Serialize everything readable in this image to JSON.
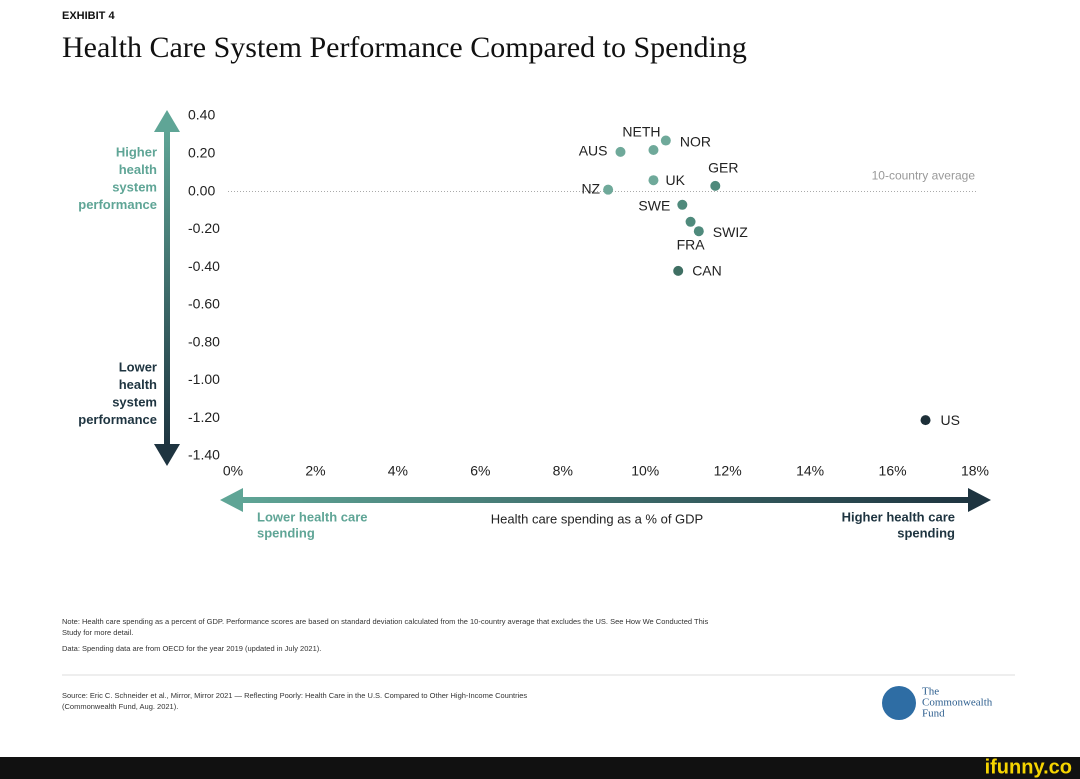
{
  "exhibit": "EXHIBIT 4",
  "chart_data": {
    "type": "scatter",
    "title": "Health Care System Performance Compared to Spending",
    "x_label": "Health care spending as a % of GDP",
    "y_high_label": [
      "Higher",
      "health",
      "system",
      "performance"
    ],
    "y_low_label": [
      "Lower",
      "health",
      "system",
      "performance"
    ],
    "x_low_label": [
      "Lower health care",
      "spending"
    ],
    "x_high_label": [
      "Higher health care",
      "spending"
    ],
    "point_labels": [
      "AUS",
      "NETH",
      "NOR",
      "UK",
      "GER",
      "NZ",
      "SWE",
      "FRA",
      "SWIZ",
      "CAN",
      "US"
    ],
    "x": [
      9.4,
      10.2,
      10.5,
      10.2,
      11.7,
      9.1,
      10.9,
      11.1,
      11.3,
      10.8,
      16.8
    ],
    "values": [
      0.21,
      0.22,
      0.27,
      0.06,
      0.03,
      0.01,
      -0.07,
      -0.16,
      -0.21,
      -0.42,
      -1.21
    ],
    "point_colors": [
      "#6fa99a",
      "#6fa99a",
      "#6fa99a",
      "#6fa99a",
      "#4f8a7c",
      "#6fa99a",
      "#4f8a7c",
      "#4f8a7c",
      "#4f8a7c",
      "#3f6f63",
      "#1d2f38"
    ],
    "reference_line": {
      "value": 0,
      "label": "10-country average"
    },
    "xlim": [
      0,
      18
    ],
    "ylim": [
      -1.4,
      0.4
    ],
    "xticks": [
      {
        "value": 0,
        "label": "0%"
      },
      {
        "value": 2,
        "label": "2%"
      },
      {
        "value": 4,
        "label": "4%"
      },
      {
        "value": 6,
        "label": "6%"
      },
      {
        "value": 8,
        "label": "8%"
      },
      {
        "value": 10,
        "label": "10%"
      },
      {
        "value": 12,
        "label": "12%"
      },
      {
        "value": 14,
        "label": "14%"
      },
      {
        "value": 16,
        "label": "16%"
      },
      {
        "value": 18,
        "label": "18%"
      }
    ],
    "yticks": [
      {
        "value": 0.4,
        "label": "0.40"
      },
      {
        "value": 0.2,
        "label": "0.20"
      },
      {
        "value": 0,
        "label": "0.00"
      },
      {
        "value": -0.2,
        "label": "-0.20"
      },
      {
        "value": -0.4,
        "label": "-0.40"
      },
      {
        "value": -0.6,
        "label": "-0.60"
      },
      {
        "value": -0.8,
        "label": "-0.80"
      },
      {
        "value": -1.0,
        "label": "-1.00"
      },
      {
        "value": -1.2,
        "label": "-1.20"
      },
      {
        "value": -1.4,
        "label": "-1.40"
      }
    ]
  },
  "footer": {
    "note": [
      "Note: Health care spending as a percent of GDP. Performance scores are based on standard deviation calculated from the 10-country average that excludes the US. See How We Conducted This",
      "Study for more detail."
    ],
    "data": "Data: Spending data are from OECD for the year 2019 (updated in July 2021).",
    "source": [
      "Source: Eric C. Schneider et al., Mirror, Mirror 2021 — Reflecting Poorly: Health Care in the U.S. Compared to Other High-Income Countries",
      "(Commonwealth Fund, Aug. 2021)."
    ],
    "logo": [
      "The",
      "Commonwealth",
      "Fund"
    ]
  },
  "watermark": "ifunny.co"
}
